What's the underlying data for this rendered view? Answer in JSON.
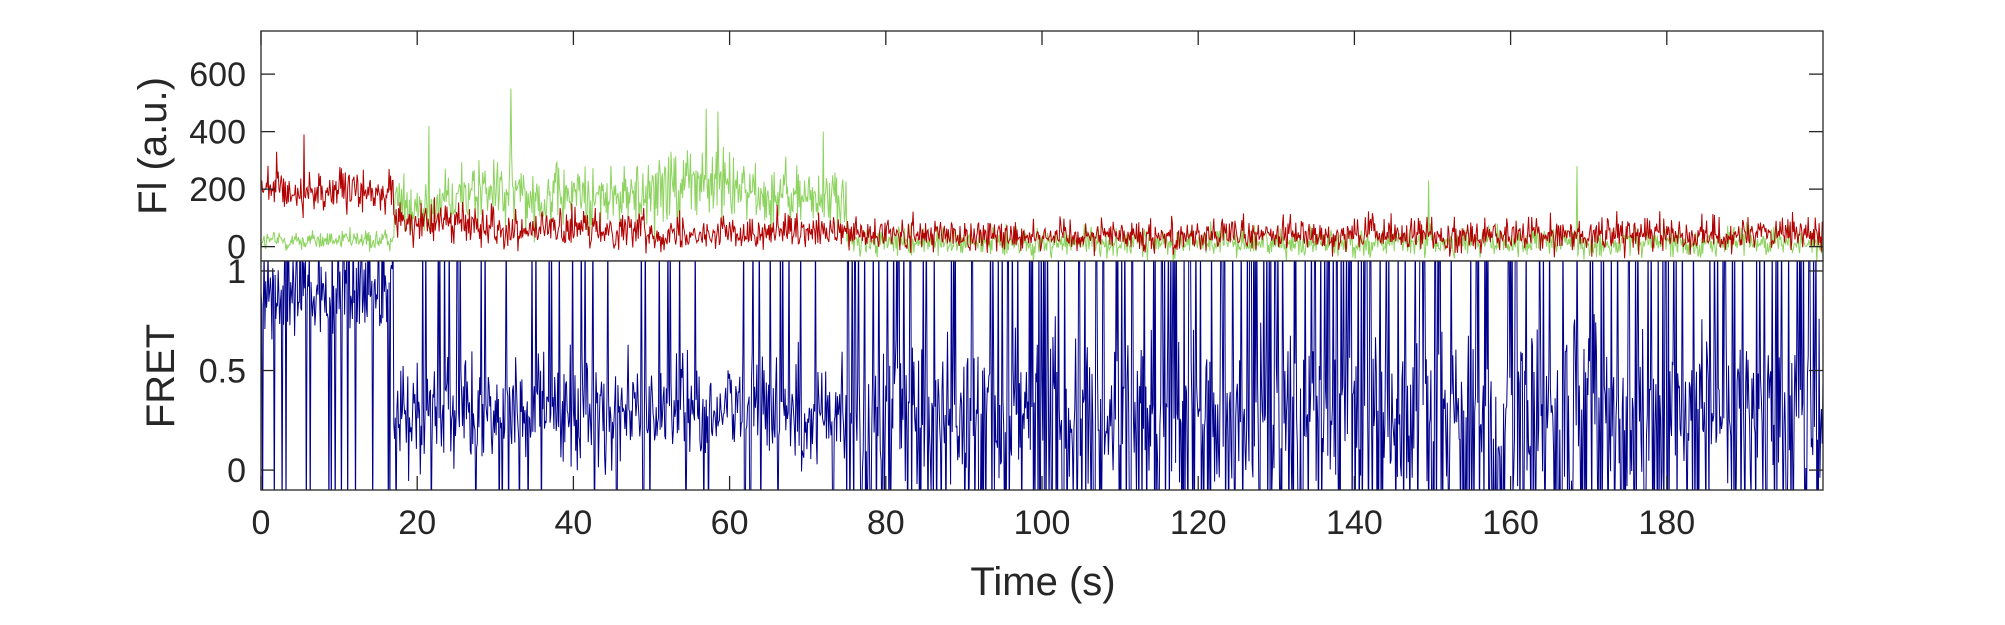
{
  "chart_data": [
    {
      "type": "line",
      "panel": "top",
      "ylabel": "Fl (a.u.)",
      "xlim": [
        0,
        200
      ],
      "ylim": [
        -50,
        750
      ],
      "yticks": [
        0,
        200,
        400,
        600
      ],
      "ytick_labels": [
        "0",
        "200",
        "400",
        "600"
      ],
      "grid": false,
      "series": [
        {
          "color": "#8dd35f",
          "segments": [
            {
              "x": [
                0,
                17
              ],
              "y_mean": 20,
              "y_noise": 25
            },
            {
              "x": [
                17,
                25
              ],
              "y_mean": 150,
              "y_noise": 70
            },
            {
              "x": [
                25,
                35
              ],
              "y_mean": 190,
              "y_noise": 90
            },
            {
              "x": [
                35,
                50
              ],
              "y_mean": 170,
              "y_noise": 80
            },
            {
              "x": [
                50,
                62
              ],
              "y_mean": 220,
              "y_noise": 100
            },
            {
              "x": [
                62,
                75
              ],
              "y_mean": 170,
              "y_noise": 80
            },
            {
              "x": [
                75,
                200
              ],
              "y_mean": 15,
              "y_noise": 35
            }
          ],
          "peaks": [
            [
              32,
              550
            ],
            [
              57,
              480
            ],
            [
              58.5,
              470
            ],
            [
              72,
              400
            ],
            [
              21.5,
              420
            ],
            [
              168.5,
              280
            ],
            [
              149.5,
              230
            ]
          ]
        },
        {
          "color": "#b30000",
          "segments": [
            {
              "x": [
                0,
                17
              ],
              "y_mean": 190,
              "y_noise": 50
            },
            {
              "x": [
                17,
                30
              ],
              "y_mean": 80,
              "y_noise": 45
            },
            {
              "x": [
                30,
                50
              ],
              "y_mean": 60,
              "y_noise": 45
            },
            {
              "x": [
                50,
                75
              ],
              "y_mean": 45,
              "y_noise": 40
            },
            {
              "x": [
                75,
                200
              ],
              "y_mean": 40,
              "y_noise": 40
            }
          ],
          "peaks": [
            [
              5.5,
              390
            ],
            [
              2,
              330
            ]
          ]
        }
      ]
    },
    {
      "type": "line",
      "panel": "bottom",
      "ylabel": "FRET",
      "xlabel": "Time (s)",
      "xlim": [
        0,
        200
      ],
      "ylim": [
        -0.1,
        1.05
      ],
      "yticks": [
        0,
        0.5,
        1
      ],
      "ytick_labels": [
        "0",
        "0.5",
        "1"
      ],
      "xticks": [
        0,
        20,
        40,
        60,
        80,
        100,
        120,
        140,
        160,
        180
      ],
      "xtick_labels": [
        "0",
        "20",
        "40",
        "60",
        "80",
        "100",
        "120",
        "140",
        "160",
        "180"
      ],
      "grid": false,
      "series": [
        {
          "color": "#00008b",
          "segments": [
            {
              "x": [
                0,
                17
              ],
              "fret_mean": 0.9,
              "fret_noise": 0.15,
              "clip_rate": 0.25
            },
            {
              "x": [
                17,
                75
              ],
              "fret_mean": 0.3,
              "fret_noise": 0.18,
              "clip_rate": 0.12
            },
            {
              "x": [
                75,
                200
              ],
              "fret_mean": 0.3,
              "fret_noise": 0.3,
              "clip_rate": 0.35
            }
          ]
        }
      ]
    }
  ]
}
